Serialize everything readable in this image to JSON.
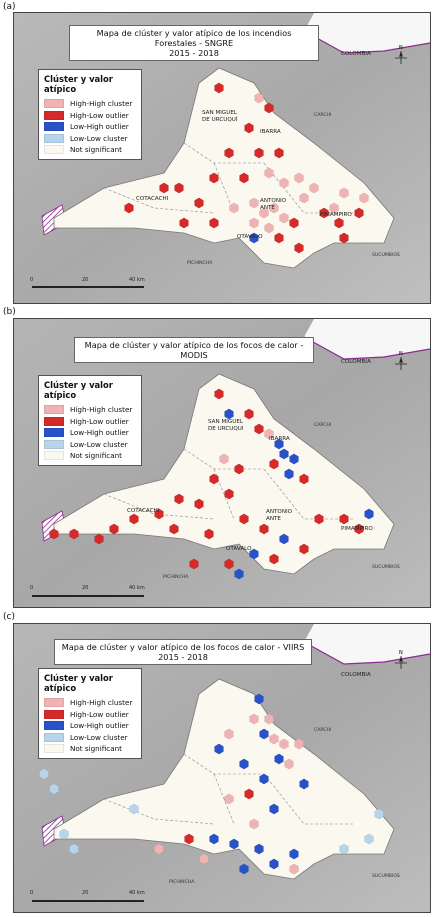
{
  "legend": {
    "title": "Clúster y valor atípico",
    "items": [
      {
        "label": "High-High cluster",
        "color": "#f0b3b3"
      },
      {
        "label": "High-Low outlier",
        "color": "#d42a2a"
      },
      {
        "label": "Low-High outlier",
        "color": "#2a52c8"
      },
      {
        "label": "Low-Low cluster",
        "color": "#b7d4ea"
      },
      {
        "label": "Not significant",
        "color": "#fbf8ef"
      }
    ]
  },
  "scale": {
    "zero": "0",
    "mid": "20",
    "end": "40 km"
  },
  "north_label": "N",
  "panels": [
    {
      "label": "(a)",
      "title_line1": "Mapa de clúster y valor atípico de los incendios Forestales - SNGRE",
      "title_line2": "2015 - 2018",
      "places": {
        "colombia": "COLOMBIA",
        "carchi": "CARCHI",
        "san_miguel_1": "SAN MIGUEL",
        "san_miguel_2": "DE URCUQUÍ",
        "ibarra": "IBARRA",
        "cotacachi": "COTACACHI",
        "antonio_1": "ANTONIO",
        "antonio_2": "ANTE",
        "pimampiro": "PIMAMPIRO",
        "otavalo": "OTAVALO",
        "pichincha": "PICHINCHA",
        "sucumbios": "SUCUMBIOS"
      }
    },
    {
      "label": "(b)",
      "title_line1": "Mapa de clúster y valor atípico de los focos de calor - MODIS",
      "title_line2": "",
      "places": {
        "colombia": "COLOMBIA",
        "carchi": "CARCHI",
        "san_miguel_1": "SAN MIGUEL",
        "san_miguel_2": "DE URCUQUI",
        "ibarra": "IBARRA",
        "cotacachi": "COTACACHI",
        "antonio_1": "ANTONIO",
        "antonio_2": "ANTE",
        "pimampiro": "PIMAMPIRO",
        "otavalo": "OTAVALO",
        "pichincha": "PICHINCHA",
        "sucumbios": "SUCUMBIOS"
      }
    },
    {
      "label": "(c)",
      "title_line1": "Mapa de clúster y valor atípico de los focos de calor - VIIRS",
      "title_line2": "2015 - 2018",
      "places": {
        "colombia": "COLOMBIA",
        "carchi": "CARCHI",
        "pichincha": "PICHINCHA",
        "sucumbios": "SUCUMBIOS"
      }
    }
  ]
}
